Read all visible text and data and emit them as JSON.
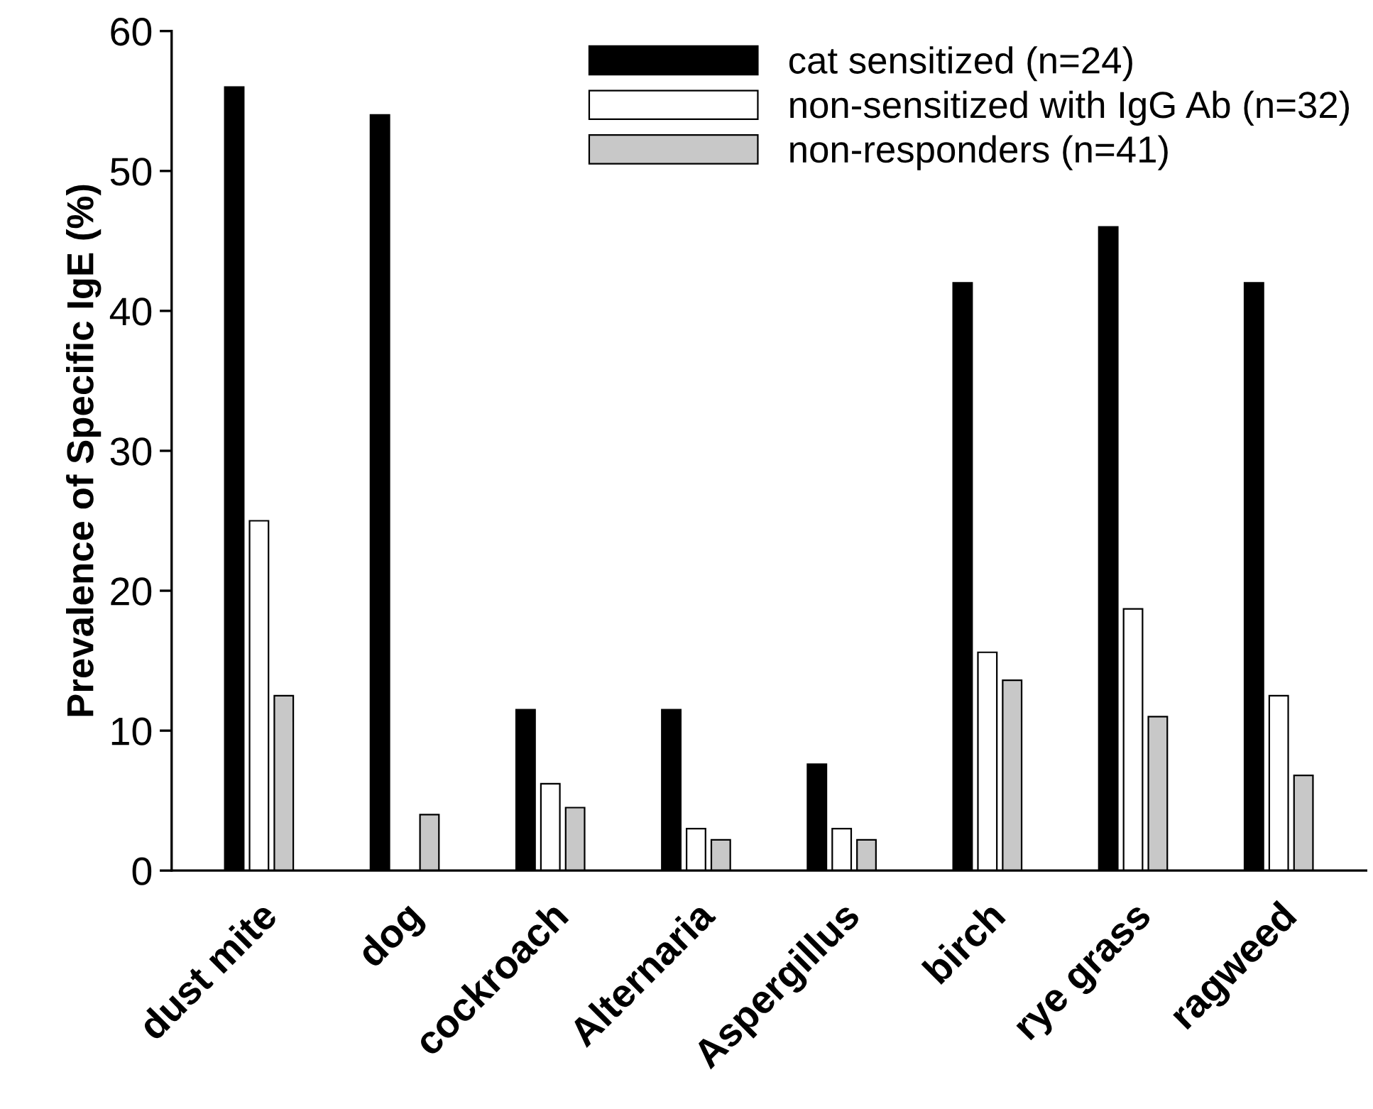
{
  "chart_data": {
    "type": "bar",
    "ylabel": "Prevalence of Specific IgE (%)",
    "categories": [
      "dust mite",
      "dog",
      "cockroach",
      "Alternaria",
      "Aspergillus",
      "birch",
      "rye grass",
      "ragweed"
    ],
    "series": [
      {
        "name": "cat sensitized (n=24)",
        "color": "#000000",
        "values": [
          56,
          54,
          11.5,
          11.5,
          7.6,
          42,
          46,
          42
        ]
      },
      {
        "name": "non-sensitized with IgG Ab (n=32)",
        "color": "#ffffff",
        "values": [
          25,
          0,
          6.2,
          3.0,
          3.0,
          15.6,
          18.7,
          12.5
        ]
      },
      {
        "name": "non-responders (n=41)",
        "color": "#c8c8c8",
        "values": [
          12.5,
          4.0,
          4.5,
          2.2,
          2.2,
          13.6,
          11.0,
          6.8
        ]
      }
    ],
    "ylim": [
      0,
      60
    ],
    "yticks": [
      0,
      10,
      20,
      30,
      40,
      50,
      60
    ],
    "grid": false,
    "legend": "top right"
  }
}
